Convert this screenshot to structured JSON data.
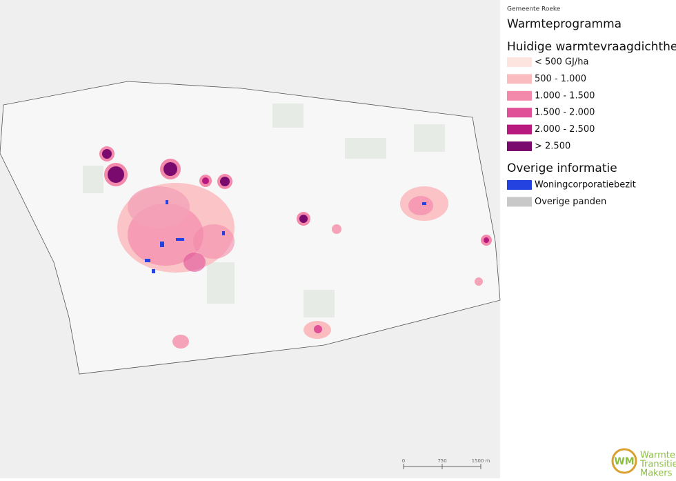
{
  "header": {
    "municipality": "Gemeente Roeke",
    "title": "Warmteprogramma"
  },
  "legend": {
    "density_title": "Huidige warmtevraagdichtheid",
    "density_items": [
      {
        "label": "< 500 GJ/ha",
        "color": "#fde4de"
      },
      {
        "label": "500 - 1.000",
        "color": "#fbbcbf"
      },
      {
        "label": "1.000 - 1.500",
        "color": "#f48aab"
      },
      {
        "label": "1.500 - 2.000",
        "color": "#e05098"
      },
      {
        "label": "2.000 - 2.500",
        "color": "#b8197f"
      },
      {
        "label": "> 2.500",
        "color": "#7a0a6e"
      }
    ],
    "other_title": "Overige informatie",
    "other_items": [
      {
        "label": "Woningcorporatiebezit",
        "color": "#2442e0"
      },
      {
        "label": "Overige panden",
        "color": "#c8c8c8"
      }
    ]
  },
  "scalebar": {
    "labels": [
      "0",
      "750",
      "1500 m"
    ]
  },
  "logo": {
    "initials": "WM",
    "lines": [
      "Warmte",
      "Transitie",
      "Makers"
    ]
  }
}
